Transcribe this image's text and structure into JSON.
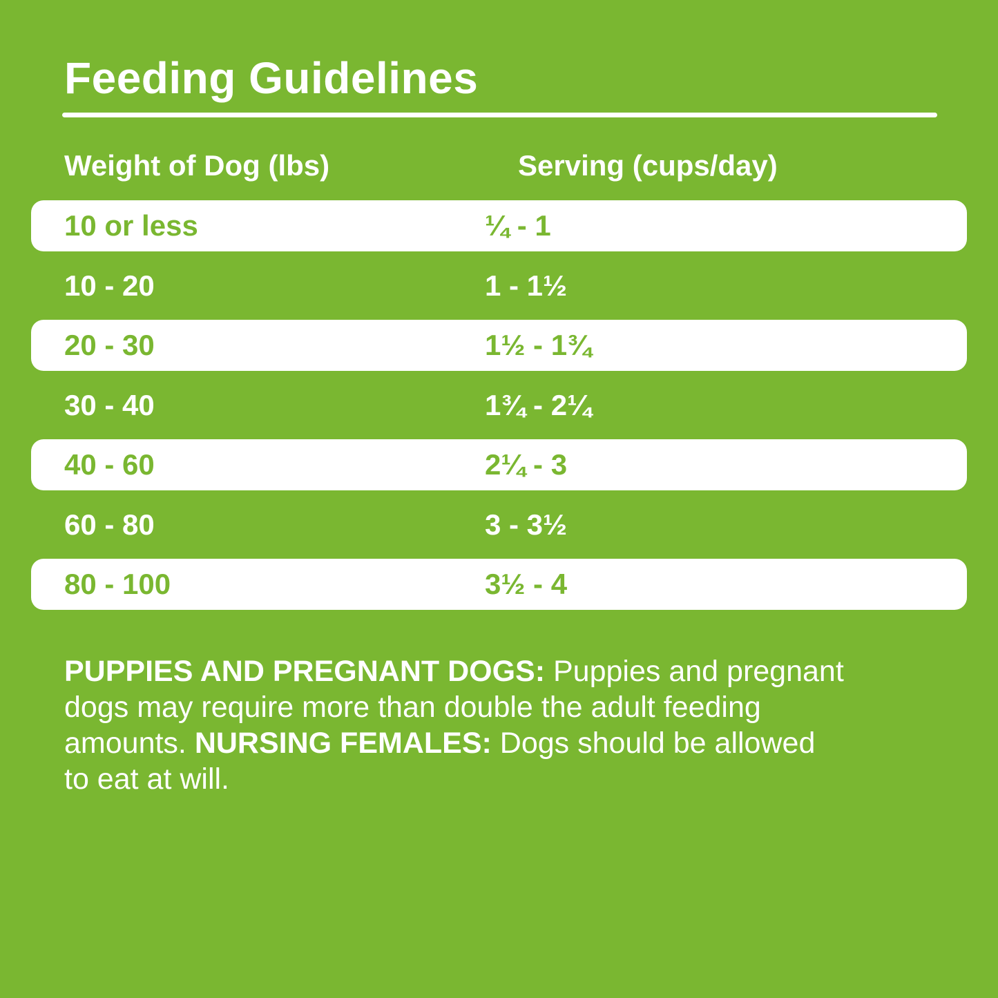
{
  "page": {
    "title": "Feeding Guidelines",
    "background_color": "#7AB731",
    "accent_green": "#7AB731",
    "text_white": "#FFFFFF"
  },
  "table": {
    "columns": [
      {
        "label": "Weight of Dog (lbs)"
      },
      {
        "label": "Serving (cups/day)"
      }
    ],
    "rows": [
      {
        "weight": "10 or less",
        "serving": "¼ - 1",
        "highlighted": true
      },
      {
        "weight": "10 - 20",
        "serving": "1 - 1½",
        "highlighted": false
      },
      {
        "weight": "20 - 30",
        "serving": "1½ - 1¾",
        "highlighted": true
      },
      {
        "weight": "30 - 40",
        "serving": "1¾ - 2¼",
        "highlighted": false
      },
      {
        "weight": "40 - 60",
        "serving": "2¼ - 3",
        "highlighted": true
      },
      {
        "weight": "60 - 80",
        "serving": "3 - 3½",
        "highlighted": false
      },
      {
        "weight": "80 - 100",
        "serving": "3½ - 4",
        "highlighted": true
      }
    ]
  },
  "footer": {
    "lines": [
      {
        "segments": [
          {
            "text": "PUPPIES AND PREGNANT DOGS:",
            "bold": true
          },
          {
            "text": " Puppies and pregnant",
            "bold": false
          }
        ]
      },
      {
        "segments": [
          {
            "text": "dogs may require more than double the adult feeding",
            "bold": false
          }
        ]
      },
      {
        "segments": [
          {
            "text": "amounts. ",
            "bold": false
          },
          {
            "text": "NURSING FEMALES:",
            "bold": true
          },
          {
            "text": " Dogs should be allowed",
            "bold": false
          }
        ]
      },
      {
        "segments": [
          {
            "text": "to eat at will.",
            "bold": false
          }
        ]
      }
    ]
  }
}
